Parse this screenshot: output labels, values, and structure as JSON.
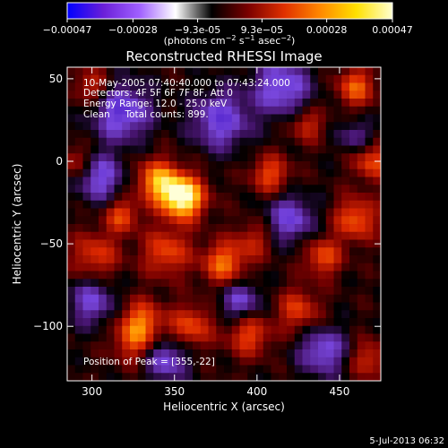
{
  "chart_data": {
    "type": "heatmap",
    "title": "Reconstructed RHESSI Image",
    "xlabel": "Heliocentric X (arcsec)",
    "ylabel": "Heliocentric Y (arcsec)",
    "xlim": [
      285,
      475
    ],
    "ylim": [
      -133,
      57
    ],
    "x_ticks": [
      300,
      350,
      400,
      450
    ],
    "y_ticks": [
      50,
      0,
      -50,
      -100
    ],
    "colorbar": {
      "range": [
        -0.00047,
        0.00047
      ],
      "tick_values": [
        -0.00047,
        -0.00028,
        -9.3e-05,
        9.3e-05,
        0.00028,
        0.00047
      ],
      "tick_labels": [
        "-0.00047",
        "-0.00028",
        "-9.3e-05",
        "9.3e-05",
        "0.00028",
        "0.00047"
      ],
      "unit_label": "(photons cm^-2 s^-1 asec^-2)",
      "colormap_stops": [
        "#0000ff",
        "#6a1fd8",
        "#a060ff",
        "#ffffff",
        "#000000",
        "#7a0000",
        "#e03000",
        "#ff8800",
        "#ffe000",
        "#ffffd0"
      ]
    },
    "annotations": {
      "time_range": "10-May-2005 07:40:40.000 to 07:43:24.000",
      "detectors": "Detectors: 4F 5F 6F 7F 8F, Att 0",
      "energy_range": "Energy Range: 12.0 - 25.0 keV",
      "method_counts": "Clean     Total counts: 899.",
      "peak_position": "Position of Peak = [355,-22]"
    },
    "peak": {
      "x": 355,
      "y": -22
    },
    "grid_size": [
      40,
      40
    ],
    "bright_sources": [
      {
        "x": 355,
        "y": -22,
        "amp": 1.0,
        "sigma": 9
      },
      {
        "x": 340,
        "y": -12,
        "amp": 0.65,
        "sigma": 9
      },
      {
        "x": 318,
        "y": -33,
        "amp": 0.45,
        "sigma": 7
      },
      {
        "x": 302,
        "y": -57,
        "amp": 0.4,
        "sigma": 10
      },
      {
        "x": 345,
        "y": -55,
        "amp": 0.45,
        "sigma": 10
      },
      {
        "x": 380,
        "y": -62,
        "amp": 0.55,
        "sigma": 9
      },
      {
        "x": 330,
        "y": -97,
        "amp": 0.5,
        "sigma": 9
      },
      {
        "x": 360,
        "y": -100,
        "amp": 0.45,
        "sigma": 9
      },
      {
        "x": 325,
        "y": -110,
        "amp": 0.35,
        "sigma": 9
      },
      {
        "x": 395,
        "y": -105,
        "amp": 0.45,
        "sigma": 9
      },
      {
        "x": 425,
        "y": -90,
        "amp": 0.4,
        "sigma": 9
      },
      {
        "x": 440,
        "y": -58,
        "amp": 0.45,
        "sigma": 8
      },
      {
        "x": 460,
        "y": -35,
        "amp": 0.5,
        "sigma": 9
      },
      {
        "x": 470,
        "y": 0,
        "amp": 0.45,
        "sigma": 8
      },
      {
        "x": 460,
        "y": 45,
        "amp": 0.5,
        "sigma": 8
      },
      {
        "x": 430,
        "y": 22,
        "amp": 0.35,
        "sigma": 7
      },
      {
        "x": 408,
        "y": -8,
        "amp": 0.45,
        "sigma": 8
      },
      {
        "x": 398,
        "y": -48,
        "amp": 0.3,
        "sigma": 8
      },
      {
        "x": 300,
        "y": 45,
        "amp": 0.35,
        "sigma": 8
      },
      {
        "x": 290,
        "y": 0,
        "amp": 0.3,
        "sigma": 7
      },
      {
        "x": 468,
        "y": -120,
        "amp": 0.35,
        "sigma": 8
      }
    ],
    "dim_regions": [
      {
        "x": 318,
        "y": 30,
        "amp": -0.55,
        "sigma": 12
      },
      {
        "x": 378,
        "y": 25,
        "amp": -0.5,
        "sigma": 12
      },
      {
        "x": 415,
        "y": 45,
        "amp": -0.5,
        "sigma": 12
      },
      {
        "x": 305,
        "y": -10,
        "amp": -0.45,
        "sigma": 10
      },
      {
        "x": 420,
        "y": -35,
        "amp": -0.45,
        "sigma": 10
      },
      {
        "x": 390,
        "y": -85,
        "amp": -0.4,
        "sigma": 9
      },
      {
        "x": 345,
        "y": -120,
        "amp": -0.45,
        "sigma": 9
      },
      {
        "x": 300,
        "y": -85,
        "amp": -0.4,
        "sigma": 10
      },
      {
        "x": 440,
        "y": -115,
        "amp": -0.45,
        "sigma": 10
      },
      {
        "x": 460,
        "y": 15,
        "amp": -0.3,
        "sigma": 7
      }
    ]
  },
  "footer": {
    "date_stamp": "5-Jul-2013 06:32"
  }
}
